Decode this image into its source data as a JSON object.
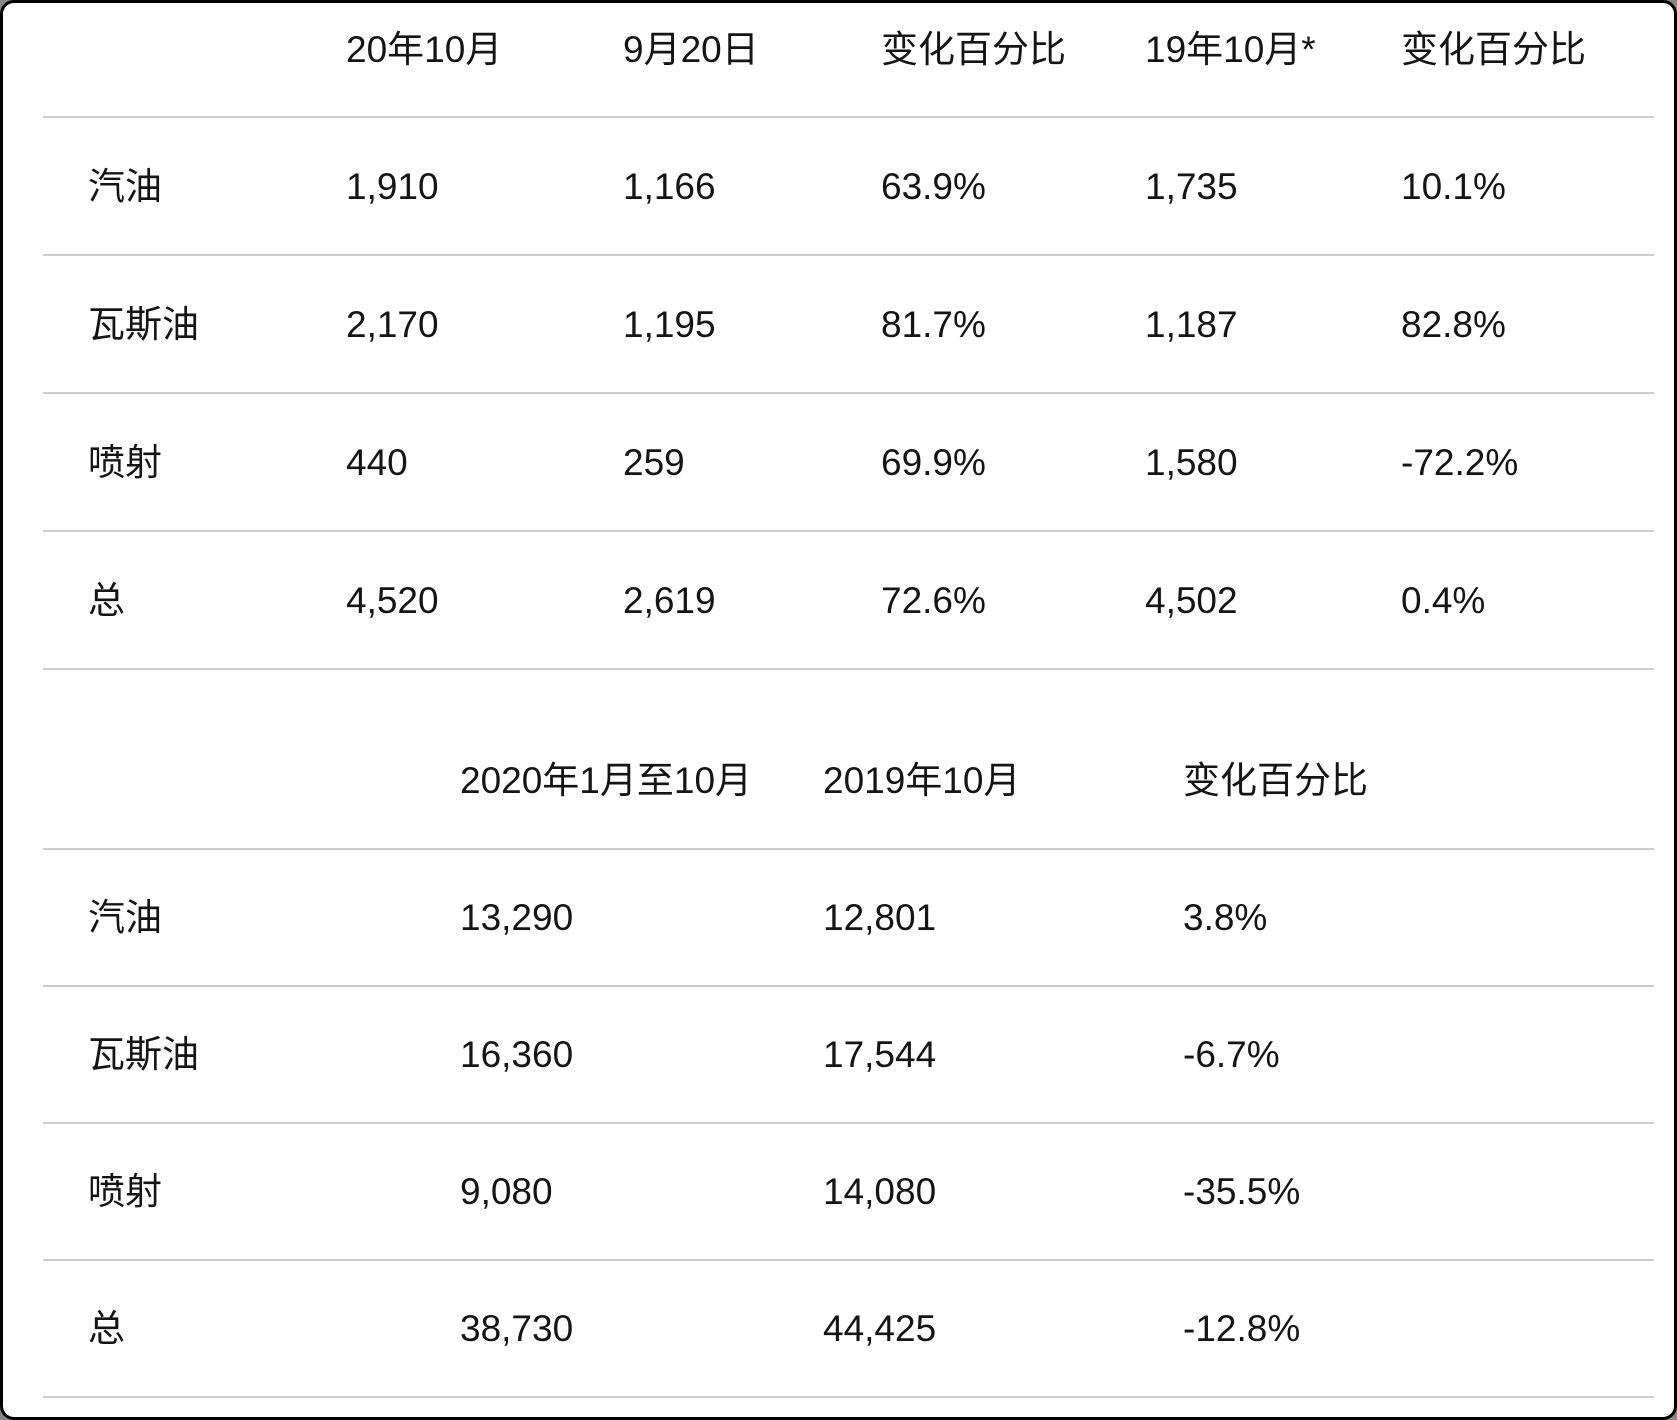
{
  "colors": {
    "background": "#ffffff",
    "text": "#141414",
    "divider": "#cccccc",
    "border": "#000000"
  },
  "chart_data": [
    {
      "type": "table",
      "title": "",
      "columns": [
        "",
        "20年10月",
        "9月20日",
        "变化百分比",
        "19年10月*",
        "变化百分比"
      ],
      "rows": [
        [
          "汽油",
          "1,910",
          "1,166",
          "63.9%",
          "1,735",
          "10.1%"
        ],
        [
          "瓦斯油",
          "2,170",
          "1,195",
          "81.7%",
          "1,187",
          "82.8%"
        ],
        [
          "喷射",
          "440",
          "259",
          "69.9%",
          "1,580",
          "-72.2%"
        ],
        [
          "总",
          "4,520",
          "2,619",
          "72.6%",
          "4,502",
          "0.4%"
        ]
      ]
    },
    {
      "type": "table",
      "title": "",
      "columns": [
        "",
        "2020年1月至10月",
        "2019年10月",
        "变化百分比"
      ],
      "rows": [
        [
          "汽油",
          "13,290",
          "12,801",
          "3.8%"
        ],
        [
          "瓦斯油",
          "16,360",
          "17,544",
          "-6.7%"
        ],
        [
          "喷射",
          "9,080",
          "14,080",
          "-35.5%"
        ],
        [
          "总",
          "38,730",
          "44,425",
          "-12.8%"
        ]
      ]
    }
  ]
}
